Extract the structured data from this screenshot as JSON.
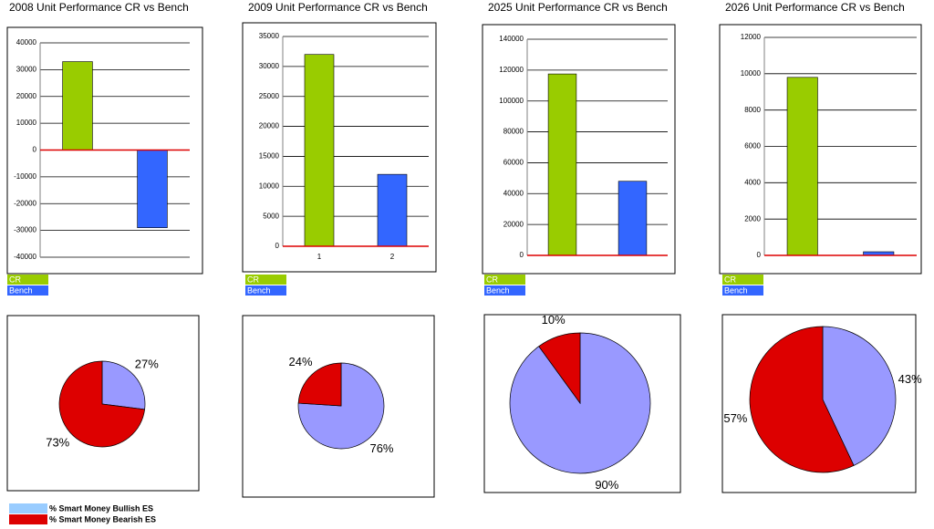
{
  "chart_data": [
    {
      "type": "bar",
      "title": "2008 Unit Performance CR vs Bench",
      "categories": [
        null,
        null
      ],
      "series": [
        {
          "name": "CR",
          "color": "#99cc00",
          "values": [
            33000,
            null
          ]
        },
        {
          "name": "Bench",
          "color": "#3366ff",
          "values": [
            null,
            -29000
          ]
        }
      ],
      "ylim": [
        -40000,
        40000
      ],
      "yticks": [
        -40000,
        -30000,
        -20000,
        -10000,
        0,
        10000,
        20000,
        30000,
        40000
      ],
      "grid": true
    },
    {
      "type": "bar",
      "title": "2009 Unit Performance CR vs Bench",
      "categories": [
        "1",
        "2"
      ],
      "series": [
        {
          "name": "CR",
          "color": "#99cc00",
          "values": [
            32000,
            null
          ]
        },
        {
          "name": "Bench",
          "color": "#3366ff",
          "values": [
            null,
            12000
          ]
        }
      ],
      "ylim": [
        0,
        35000
      ],
      "yticks": [
        0,
        5000,
        10000,
        15000,
        20000,
        25000,
        30000,
        35000
      ],
      "grid": true
    },
    {
      "type": "bar",
      "title": "2025 Unit Performance CR vs Bench",
      "categories": [
        null,
        null
      ],
      "series": [
        {
          "name": "CR",
          "color": "#99cc00",
          "values": [
            117500,
            null
          ]
        },
        {
          "name": "Bench",
          "color": "#3366ff",
          "values": [
            null,
            48000
          ]
        }
      ],
      "ylim": [
        0,
        140000
      ],
      "yticks": [
        0,
        20000,
        40000,
        60000,
        80000,
        100000,
        120000,
        140000
      ],
      "grid": true
    },
    {
      "type": "bar",
      "title": "2026 Unit Performance CR vs Bench",
      "categories": [
        null,
        null
      ],
      "series": [
        {
          "name": "CR",
          "color": "#99cc00",
          "values": [
            9800,
            null
          ]
        },
        {
          "name": "Bench",
          "color": "#3366ff",
          "values": [
            null,
            200
          ]
        }
      ],
      "ylim": [
        0,
        12000
      ],
      "yticks": [
        0,
        2000,
        4000,
        6000,
        8000,
        10000,
        12000
      ],
      "grid": true
    },
    {
      "type": "pie",
      "categories": [
        "% Smart Money Bullish ES",
        "% Smart Money Bearish ES"
      ],
      "legend_colors": [
        "#99ccff",
        "#dd0000"
      ],
      "values": [
        27,
        73
      ],
      "value_labels": [
        "27%",
        "73%"
      ],
      "colors": [
        "#9999ff",
        "#dd0000"
      ]
    },
    {
      "type": "pie",
      "values": [
        76,
        24
      ],
      "value_labels": [
        "76%",
        "24%"
      ],
      "colors": [
        "#9999ff",
        "#dd0000"
      ]
    },
    {
      "type": "pie",
      "values": [
        90,
        10
      ],
      "value_labels": [
        "90%",
        "10%"
      ],
      "colors": [
        "#9999ff",
        "#dd0000"
      ]
    },
    {
      "type": "pie",
      "values": [
        43,
        57
      ],
      "value_labels": [
        "43%",
        "57%"
      ],
      "colors": [
        "#9999ff",
        "#dd0000"
      ]
    }
  ]
}
